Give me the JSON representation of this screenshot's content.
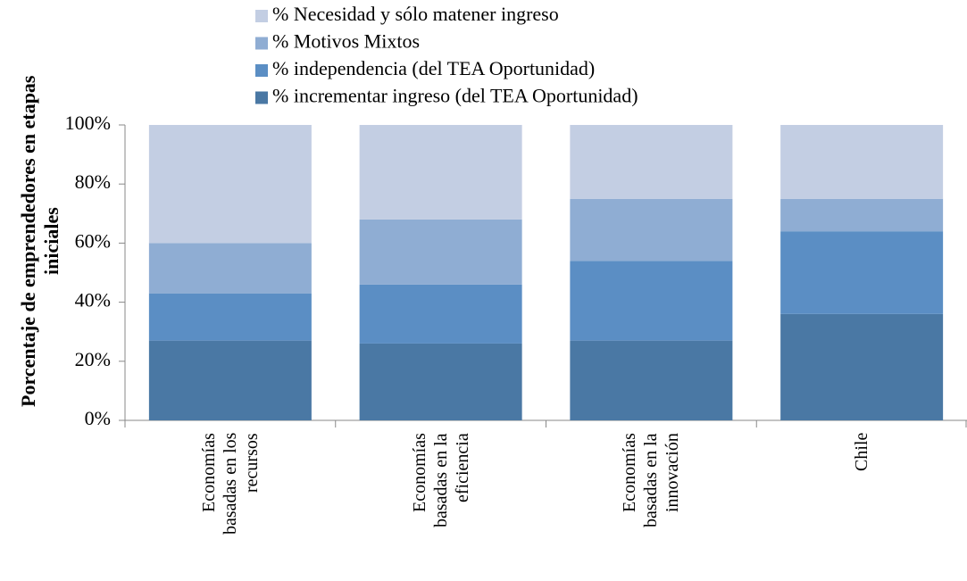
{
  "chart_data": {
    "type": "stacked_bar",
    "y_axis_label": "Porcentaje de emprendedores en etapas iniciales",
    "categories": [
      "Economías basadas en los recursos",
      "Economías basadas en la eficiencia",
      "Economías basadas en la innovación",
      "Chile"
    ],
    "series": [
      {
        "name": "% incrementar ingreso (del TEA Oportunidad)",
        "color": "#4a78a4",
        "values": [
          27,
          26,
          27,
          36
        ]
      },
      {
        "name": "% independencia (del TEA Oportunidad)",
        "color": "#5b8ec4",
        "values": [
          16,
          20,
          27,
          28
        ]
      },
      {
        "name": "% Motivos Mixtos",
        "color": "#8fadd3",
        "values": [
          17,
          22,
          21,
          11
        ]
      },
      {
        "name": "% Necesidad y sólo matener ingreso",
        "color": "#c3cee3",
        "values": [
          40,
          32,
          25,
          25
        ]
      }
    ],
    "ylim": [
      0,
      100
    ],
    "yticks": [
      {
        "value": 0,
        "label": "0%"
      },
      {
        "value": 20,
        "label": "20%"
      },
      {
        "value": 40,
        "label": "40%"
      },
      {
        "value": 60,
        "label": "60%"
      },
      {
        "value": 80,
        "label": "80%"
      },
      {
        "value": 100,
        "label": "100%"
      }
    ]
  }
}
